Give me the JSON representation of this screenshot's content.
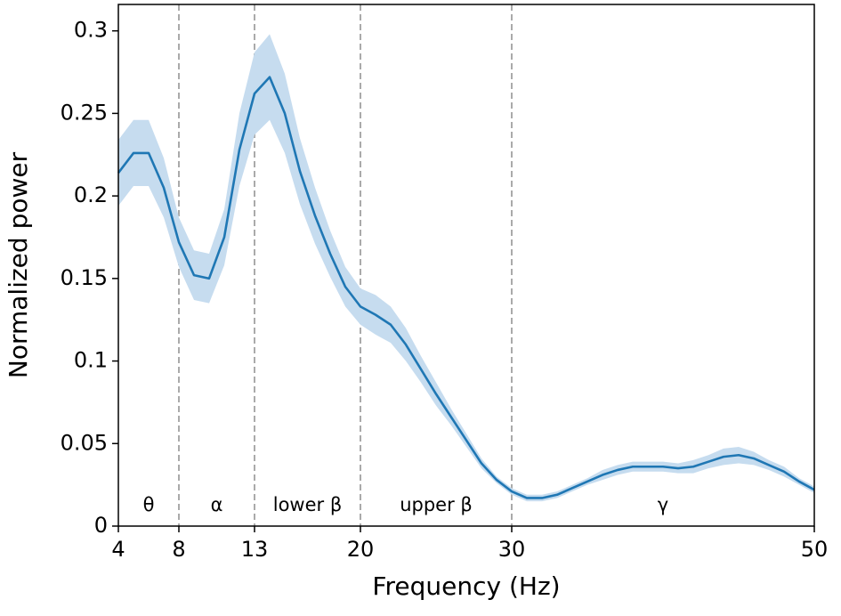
{
  "chart_data": {
    "type": "line",
    "xlabel": "Frequency (Hz)",
    "ylabel": "Normalized power",
    "x": [
      4,
      5,
      6,
      7,
      8,
      9,
      10,
      11,
      12,
      13,
      14,
      15,
      16,
      17,
      18,
      19,
      20,
      21,
      22,
      23,
      24,
      25,
      26,
      27,
      28,
      29,
      30,
      31,
      32,
      33,
      34,
      35,
      36,
      37,
      38,
      39,
      40,
      41,
      42,
      43,
      44,
      45,
      46,
      47,
      48,
      49,
      50
    ],
    "series": [
      {
        "color": "#1f77b4",
        "band_color": "#c6dcef",
        "values": [
          0.214,
          0.226,
          0.226,
          0.205,
          0.172,
          0.152,
          0.15,
          0.175,
          0.228,
          0.262,
          0.272,
          0.25,
          0.215,
          0.188,
          0.165,
          0.145,
          0.133,
          0.128,
          0.122,
          0.11,
          0.095,
          0.08,
          0.066,
          0.052,
          0.038,
          0.028,
          0.021,
          0.017,
          0.017,
          0.019,
          0.023,
          0.027,
          0.031,
          0.034,
          0.036,
          0.036,
          0.036,
          0.035,
          0.036,
          0.039,
          0.042,
          0.043,
          0.041,
          0.037,
          0.033,
          0.027,
          0.022
        ],
        "lower": [
          0.194,
          0.206,
          0.206,
          0.187,
          0.157,
          0.137,
          0.135,
          0.158,
          0.206,
          0.237,
          0.246,
          0.226,
          0.195,
          0.171,
          0.151,
          0.133,
          0.122,
          0.116,
          0.111,
          0.1,
          0.087,
          0.073,
          0.061,
          0.048,
          0.035,
          0.026,
          0.019,
          0.015,
          0.015,
          0.017,
          0.021,
          0.025,
          0.028,
          0.031,
          0.033,
          0.033,
          0.033,
          0.032,
          0.032,
          0.035,
          0.037,
          0.038,
          0.037,
          0.034,
          0.03,
          0.025,
          0.02
        ],
        "upper": [
          0.234,
          0.246,
          0.246,
          0.223,
          0.187,
          0.167,
          0.165,
          0.192,
          0.25,
          0.287,
          0.298,
          0.274,
          0.235,
          0.205,
          0.179,
          0.157,
          0.144,
          0.14,
          0.133,
          0.12,
          0.103,
          0.087,
          0.071,
          0.056,
          0.041,
          0.03,
          0.023,
          0.019,
          0.019,
          0.021,
          0.025,
          0.029,
          0.034,
          0.037,
          0.039,
          0.039,
          0.039,
          0.038,
          0.04,
          0.043,
          0.047,
          0.048,
          0.045,
          0.04,
          0.036,
          0.029,
          0.024
        ]
      }
    ],
    "xlim": [
      4,
      50
    ],
    "ylim": [
      0,
      0.316
    ],
    "xticks": [
      4,
      8,
      13,
      20,
      30,
      50
    ],
    "yticks": [
      0,
      0.05,
      0.1,
      0.15,
      0.2,
      0.25,
      0.3
    ],
    "vlines": [
      8,
      13,
      20,
      30
    ],
    "band_labels": [
      "θ",
      "α",
      "lower β",
      "upper β",
      "γ"
    ]
  }
}
